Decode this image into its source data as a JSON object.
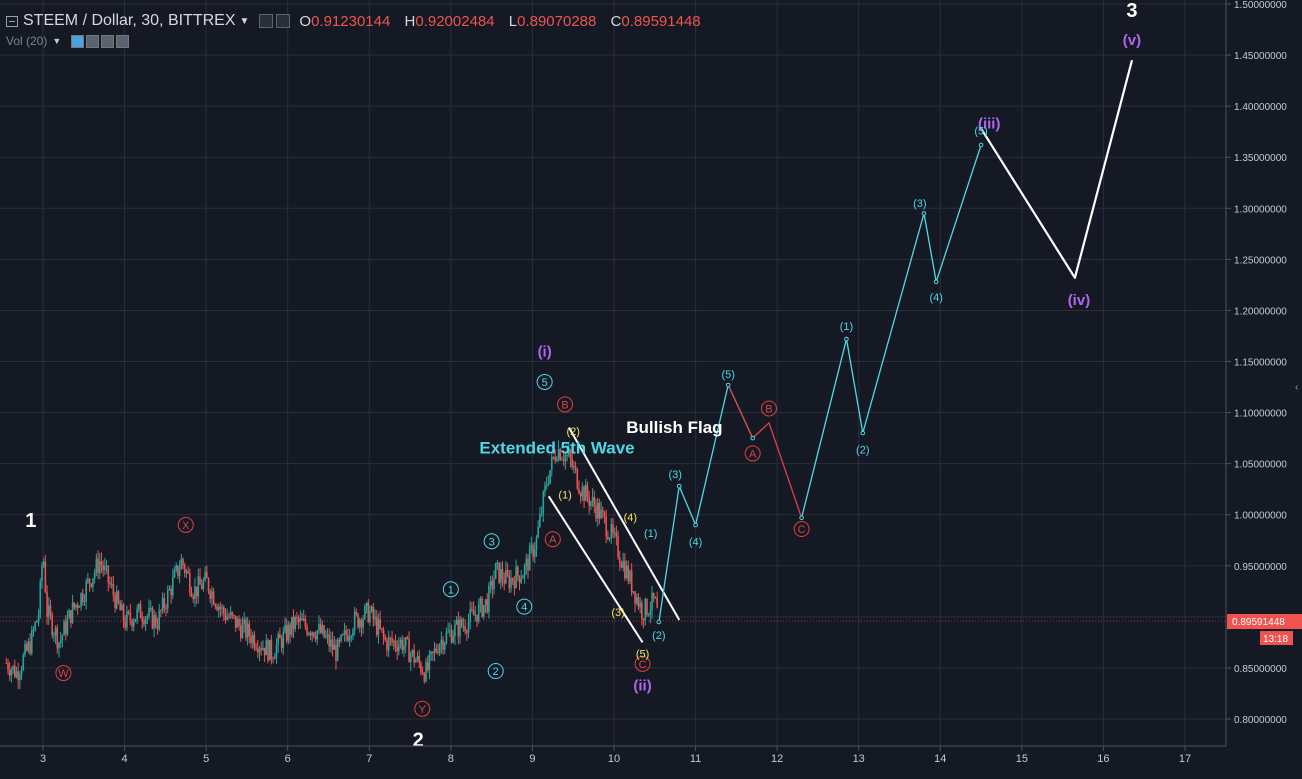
{
  "header": {
    "symbol": "STEEM / Dollar, 30, BITTREX",
    "open_label": "O",
    "open": "0.91230144",
    "high_label": "H",
    "high": "0.92002484",
    "low_label": "L",
    "low": "0.89070288",
    "close_label": "C",
    "close": "0.89591448"
  },
  "volume_label": "Vol (20)",
  "price_tag": {
    "value": "0.89591448",
    "timer": "13:18"
  },
  "colors": {
    "background": "#151924",
    "grid": "#2a2e39",
    "up": "#26a69a",
    "down": "#ef5350",
    "cyan": "#4dd9e6",
    "yellow": "#f5e35a",
    "purple": "#b066f0",
    "red_wave": "#e0403f"
  },
  "chart_data": {
    "type": "line",
    "x_axis": {
      "ticks": [
        "3",
        "4",
        "5",
        "6",
        "7",
        "8",
        "9",
        "10",
        "11",
        "12",
        "13",
        "14",
        "15",
        "16",
        "17"
      ],
      "range": [
        2.55,
        17.5
      ]
    },
    "y_axis": {
      "ticks": [
        "0.80000000",
        "0.85000000",
        "0.90000000",
        "0.95000000",
        "1.00000000",
        "1.05000000",
        "1.10000000",
        "1.15000000",
        "1.20000000",
        "1.25000000",
        "1.30000000",
        "1.35000000",
        "1.40000000",
        "1.45000000",
        "1.50000000"
      ],
      "range": [
        0.77,
        1.51
      ]
    },
    "grid": true,
    "price_anchors": [
      [
        2.55,
        0.855
      ],
      [
        2.68,
        0.845
      ],
      [
        2.85,
        0.875
      ],
      [
        2.95,
        0.905
      ],
      [
        3.0,
        0.965
      ],
      [
        3.05,
        0.905
      ],
      [
        3.2,
        0.875
      ],
      [
        3.35,
        0.905
      ],
      [
        3.5,
        0.925
      ],
      [
        3.7,
        0.955
      ],
      [
        3.85,
        0.925
      ],
      [
        4.0,
        0.895
      ],
      [
        4.2,
        0.905
      ],
      [
        4.4,
        0.895
      ],
      [
        4.55,
        0.925
      ],
      [
        4.7,
        0.955
      ],
      [
        4.85,
        0.925
      ],
      [
        5.0,
        0.935
      ],
      [
        5.2,
        0.905
      ],
      [
        5.5,
        0.885
      ],
      [
        5.8,
        0.865
      ],
      [
        6.0,
        0.885
      ],
      [
        6.1,
        0.895
      ],
      [
        6.4,
        0.885
      ],
      [
        6.6,
        0.865
      ],
      [
        6.8,
        0.895
      ],
      [
        7.0,
        0.905
      ],
      [
        7.2,
        0.875
      ],
      [
        7.4,
        0.875
      ],
      [
        7.6,
        0.855
      ],
      [
        7.7,
        0.845
      ],
      [
        7.85,
        0.875
      ],
      [
        8.0,
        0.885
      ],
      [
        8.2,
        0.895
      ],
      [
        8.45,
        0.915
      ],
      [
        8.55,
        0.945
      ],
      [
        8.7,
        0.935
      ],
      [
        8.9,
        0.945
      ],
      [
        9.05,
        0.975
      ],
      [
        9.18,
        1.035
      ],
      [
        9.3,
        1.065
      ],
      [
        9.45,
        1.055
      ],
      [
        9.6,
        1.025
      ],
      [
        9.8,
        1.005
      ],
      [
        10.0,
        0.975
      ],
      [
        10.2,
        0.935
      ],
      [
        10.35,
        0.905
      ],
      [
        10.5,
        0.915
      ],
      [
        10.55,
        0.895
      ]
    ],
    "projection_cyan": [
      [
        10.55,
        0.895
      ],
      [
        10.8,
        1.028
      ],
      [
        11.0,
        0.99
      ],
      [
        11.4,
        1.127
      ],
      [
        11.7,
        1.075
      ],
      [
        12.3,
        0.997
      ],
      [
        12.85,
        1.172
      ],
      [
        13.05,
        1.08
      ],
      [
        13.8,
        1.295
      ],
      [
        13.95,
        1.228
      ],
      [
        14.5,
        1.362
      ]
    ],
    "projection_red": [
      [
        11.4,
        1.127
      ],
      [
        11.7,
        1.075
      ],
      [
        11.9,
        1.09
      ],
      [
        12.3,
        0.997
      ]
    ],
    "projection_white": [
      [
        14.5,
        1.378
      ],
      [
        15.65,
        1.232
      ],
      [
        16.35,
        1.445
      ]
    ],
    "flag_channel": [
      [
        [
          9.45,
          1.085
        ],
        [
          10.8,
          0.897
        ]
      ],
      [
        [
          9.2,
          1.018
        ],
        [
          10.35,
          0.875
        ]
      ]
    ],
    "labels": [
      {
        "text": "1",
        "x": 2.85,
        "y": 0.995,
        "style": "big-white"
      },
      {
        "text": "2",
        "x": 7.6,
        "y": 0.78,
        "style": "big-white"
      },
      {
        "text": "3",
        "x": 16.35,
        "y": 1.494,
        "style": "big-white"
      },
      {
        "text": "W",
        "x": 3.25,
        "y": 0.845,
        "style": "circle-red"
      },
      {
        "text": "X",
        "x": 4.75,
        "y": 0.99,
        "style": "circle-red"
      },
      {
        "text": "Y",
        "x": 7.65,
        "y": 0.81,
        "style": "circle-red"
      },
      {
        "text": "1",
        "x": 8.0,
        "y": 0.927,
        "style": "circle-cyan"
      },
      {
        "text": "2",
        "x": 8.55,
        "y": 0.847,
        "style": "circle-cyan"
      },
      {
        "text": "3",
        "x": 8.5,
        "y": 0.974,
        "style": "circle-cyan"
      },
      {
        "text": "4",
        "x": 8.9,
        "y": 0.91,
        "style": "circle-cyan"
      },
      {
        "text": "5",
        "x": 9.15,
        "y": 1.13,
        "style": "circle-cyan"
      },
      {
        "text": "(i)",
        "x": 9.15,
        "y": 1.16,
        "style": "purple"
      },
      {
        "text": "(ii)",
        "x": 10.35,
        "y": 0.833,
        "style": "purple"
      },
      {
        "text": "(iii)",
        "x": 14.6,
        "y": 1.383,
        "style": "purple"
      },
      {
        "text": "(iv)",
        "x": 15.7,
        "y": 1.21,
        "style": "purple"
      },
      {
        "text": "(v)",
        "x": 16.35,
        "y": 1.465,
        "style": "purple"
      },
      {
        "text": "A",
        "x": 9.25,
        "y": 0.976,
        "style": "circle-red"
      },
      {
        "text": "B",
        "x": 9.4,
        "y": 1.108,
        "style": "circle-red"
      },
      {
        "text": "C",
        "x": 10.35,
        "y": 0.854,
        "style": "circle-red"
      },
      {
        "text": "(1)",
        "x": 9.4,
        "y": 1.02,
        "style": "yellow"
      },
      {
        "text": "(2)",
        "x": 9.5,
        "y": 1.082,
        "style": "yellow"
      },
      {
        "text": "(3)",
        "x": 10.05,
        "y": 0.905,
        "style": "yellow"
      },
      {
        "text": "(4)",
        "x": 10.2,
        "y": 0.998,
        "style": "yellow"
      },
      {
        "text": "(5)",
        "x": 10.35,
        "y": 0.864,
        "style": "yellow"
      },
      {
        "text": "(1)",
        "x": 10.45,
        "y": 0.982,
        "style": "cyan"
      },
      {
        "text": "(2)",
        "x": 10.55,
        "y": 0.882,
        "style": "cyan"
      },
      {
        "text": "(3)",
        "x": 10.75,
        "y": 1.04,
        "style": "cyan"
      },
      {
        "text": "(4)",
        "x": 11.0,
        "y": 0.974,
        "style": "cyan"
      },
      {
        "text": "(5)",
        "x": 11.4,
        "y": 1.138,
        "style": "cyan"
      },
      {
        "text": "A",
        "x": 11.7,
        "y": 1.06,
        "style": "circle-red"
      },
      {
        "text": "B",
        "x": 11.9,
        "y": 1.104,
        "style": "circle-red"
      },
      {
        "text": "C",
        "x": 12.3,
        "y": 0.986,
        "style": "circle-red"
      },
      {
        "text": "(1)",
        "x": 12.85,
        "y": 1.185,
        "style": "cyan"
      },
      {
        "text": "(2)",
        "x": 13.05,
        "y": 1.064,
        "style": "cyan"
      },
      {
        "text": "(3)",
        "x": 13.75,
        "y": 1.305,
        "style": "cyan"
      },
      {
        "text": "(4)",
        "x": 13.95,
        "y": 1.213,
        "style": "cyan"
      },
      {
        "text": "(5)",
        "x": 14.5,
        "y": 1.376,
        "style": "cyan"
      },
      {
        "text": "Extended 5th Wave",
        "x": 8.35,
        "y": 1.065,
        "style": "cyan-bold"
      },
      {
        "text": "Bullish Flag",
        "x": 10.15,
        "y": 1.085,
        "style": "white-bold"
      }
    ]
  }
}
